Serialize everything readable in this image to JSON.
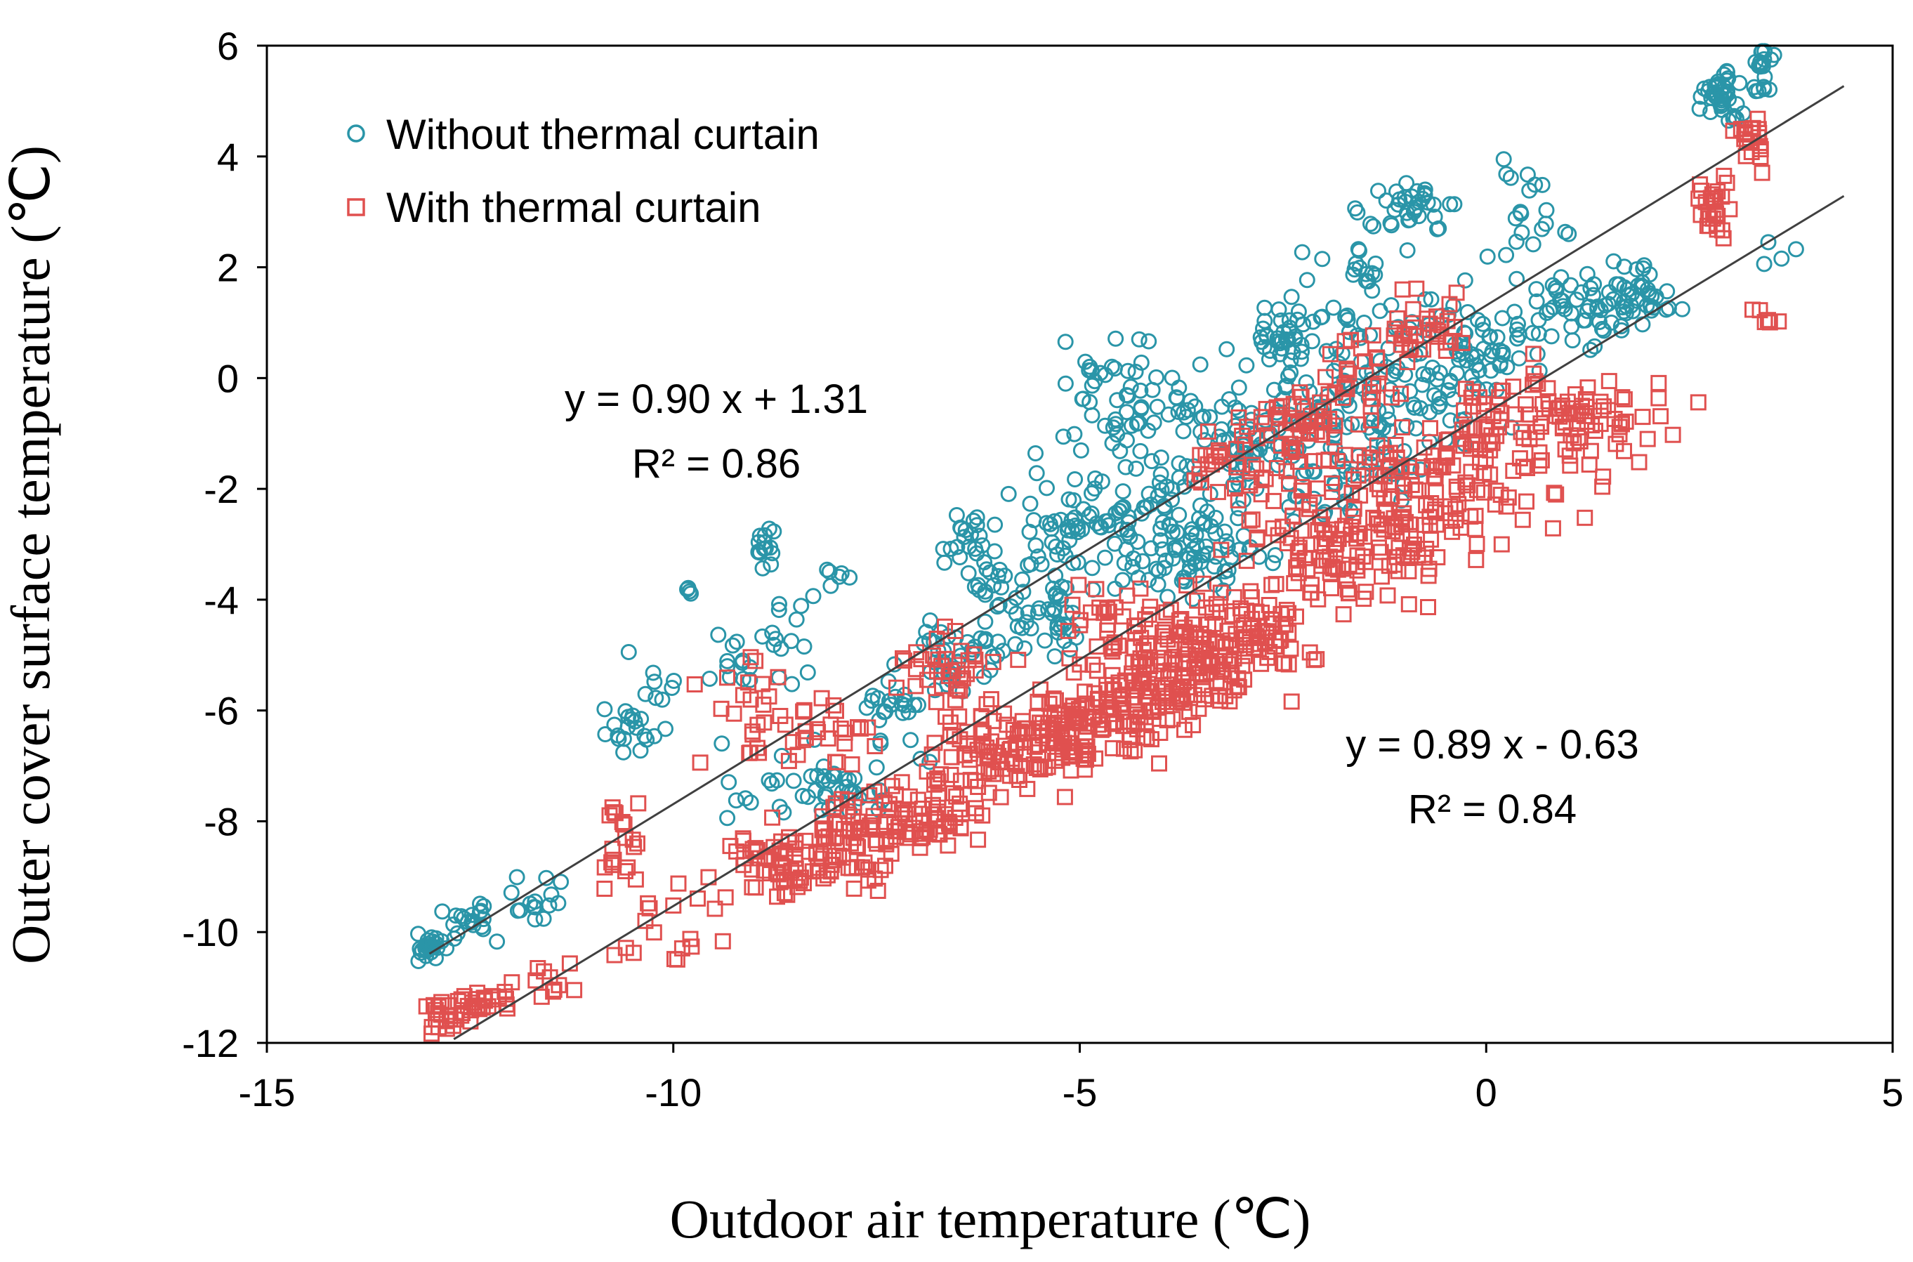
{
  "chart_data": {
    "type": "scatter",
    "xlabel": "Outdoor air temperature (℃)",
    "ylabel": "Outer cover surface temperature (℃)",
    "xlim": [
      -15,
      5
    ],
    "ylim": [
      -12,
      6
    ],
    "xticks": [
      "-15",
      "-10",
      "-5",
      "0",
      "5"
    ],
    "yticks": [
      "-12",
      "-10",
      "-8",
      "-6",
      "-4",
      "-2",
      "0",
      "2",
      "4",
      "6"
    ],
    "grid": false,
    "legend_position": "top-left",
    "colors": {
      "without": "#2a95a8",
      "with": "#e0504f",
      "line": "#404040"
    },
    "series": [
      {
        "name": "Without thermal curtain",
        "marker": "circle",
        "trend": {
          "slope": 0.9,
          "intercept": 1.31,
          "x_range": [
            -13,
            4.4
          ]
        },
        "equation": "y = 0.90 x + 1.31",
        "r2": "R² = 0.86",
        "clusters": [
          [
            -13.0,
            -10.3,
            0.25,
            0.2,
            25
          ],
          [
            -12.5,
            -9.8,
            0.3,
            0.3,
            20
          ],
          [
            -11.8,
            -9.4,
            0.4,
            0.3,
            15
          ],
          [
            -10.5,
            -6.3,
            0.25,
            0.4,
            20
          ],
          [
            -10.2,
            -5.4,
            0.3,
            0.4,
            8
          ],
          [
            -9.8,
            -3.9,
            0.1,
            0.1,
            4
          ],
          [
            -9.2,
            -5.5,
            0.3,
            0.6,
            12
          ],
          [
            -8.9,
            -3.0,
            0.1,
            0.3,
            15
          ],
          [
            -8.5,
            -4.5,
            0.4,
            0.6,
            15
          ],
          [
            -8.0,
            -3.5,
            0.2,
            0.3,
            6
          ],
          [
            -9.0,
            -7.2,
            0.6,
            0.6,
            15
          ],
          [
            -8.0,
            -7.4,
            0.6,
            0.4,
            30
          ],
          [
            -7.2,
            -6.0,
            0.4,
            0.6,
            25
          ],
          [
            -6.5,
            -5.0,
            0.5,
            0.6,
            40
          ],
          [
            -6.3,
            -3.0,
            0.3,
            0.6,
            25
          ],
          [
            -5.5,
            -4.0,
            0.6,
            0.8,
            60
          ],
          [
            -5.0,
            -2.6,
            0.6,
            0.8,
            50
          ],
          [
            -4.5,
            -0.5,
            0.8,
            0.9,
            60
          ],
          [
            -4.0,
            -2.5,
            0.8,
            1.0,
            50
          ],
          [
            -3.5,
            -3.2,
            0.8,
            0.7,
            60
          ],
          [
            -3.0,
            -1.0,
            0.7,
            1.0,
            60
          ],
          [
            -2.4,
            0.8,
            0.3,
            0.5,
            40
          ],
          [
            -2.0,
            -1.3,
            0.8,
            1.0,
            70
          ],
          [
            -1.5,
            -0.2,
            0.8,
            1.2,
            50
          ],
          [
            -1.5,
            2.0,
            0.6,
            1.0,
            30
          ],
          [
            -0.9,
            3.1,
            0.4,
            0.4,
            30
          ],
          [
            -0.5,
            0.0,
            0.8,
            1.0,
            50
          ],
          [
            0.0,
            0.7,
            0.6,
            0.8,
            40
          ],
          [
            0.5,
            3.0,
            0.5,
            1.0,
            20
          ],
          [
            1.0,
            1.1,
            0.5,
            0.5,
            30
          ],
          [
            1.5,
            1.4,
            0.5,
            0.5,
            30
          ],
          [
            2.0,
            1.5,
            0.4,
            0.4,
            25
          ],
          [
            2.9,
            5.1,
            0.2,
            0.4,
            40
          ],
          [
            3.4,
            5.6,
            0.1,
            0.4,
            20
          ],
          [
            3.8,
            2.4,
            0.4,
            0.3,
            4
          ]
        ]
      },
      {
        "name": "With thermal curtain",
        "marker": "square",
        "trend": {
          "slope": 0.89,
          "intercept": -0.63,
          "x_range": [
            -12.7,
            4.4
          ]
        },
        "equation": "y = 0.89 x - 0.63",
        "r2": "R² = 0.84",
        "clusters": [
          [
            -12.8,
            -11.4,
            0.2,
            0.3,
            25
          ],
          [
            -12.3,
            -11.1,
            0.3,
            0.3,
            20
          ],
          [
            -11.5,
            -10.8,
            0.3,
            0.3,
            10
          ],
          [
            -10.3,
            -10.2,
            0.6,
            0.3,
            10
          ],
          [
            -10.6,
            -8.5,
            0.3,
            0.8,
            20
          ],
          [
            -9.8,
            -9.5,
            0.6,
            0.5,
            10
          ],
          [
            -9.0,
            -6.0,
            0.5,
            1.0,
            25
          ],
          [
            -8.8,
            -8.8,
            0.5,
            0.6,
            40
          ],
          [
            -8.2,
            -8.7,
            0.6,
            0.5,
            50
          ],
          [
            -8.0,
            -6.3,
            0.5,
            0.6,
            25
          ],
          [
            -7.5,
            -8.2,
            0.7,
            0.5,
            50
          ],
          [
            -6.7,
            -7.7,
            0.6,
            0.5,
            50
          ],
          [
            -6.5,
            -5.5,
            0.5,
            0.8,
            40
          ],
          [
            -5.8,
            -6.8,
            0.7,
            0.6,
            80
          ],
          [
            -5.0,
            -6.3,
            0.7,
            0.6,
            80
          ],
          [
            -4.5,
            -4.5,
            0.6,
            0.8,
            40
          ],
          [
            -4.3,
            -5.8,
            0.7,
            0.6,
            80
          ],
          [
            -3.5,
            -5.2,
            0.7,
            0.6,
            80
          ],
          [
            -3.0,
            -4.5,
            0.7,
            0.8,
            80
          ],
          [
            -3.0,
            -1.5,
            0.6,
            0.8,
            40
          ],
          [
            -2.3,
            -0.8,
            0.4,
            0.5,
            40
          ],
          [
            -2.0,
            -3.0,
            0.8,
            1.0,
            80
          ],
          [
            -1.5,
            0.0,
            0.5,
            0.7,
            30
          ],
          [
            -1.2,
            -2.6,
            0.8,
            1.0,
            80
          ],
          [
            -0.8,
            1.0,
            0.5,
            0.6,
            30
          ],
          [
            -0.5,
            -1.8,
            0.8,
            0.8,
            60
          ],
          [
            0.2,
            -0.5,
            0.6,
            0.8,
            40
          ],
          [
            0.5,
            -2.0,
            0.6,
            0.8,
            20
          ],
          [
            1.0,
            -0.8,
            0.5,
            0.5,
            25
          ],
          [
            1.5,
            -1.0,
            0.6,
            0.6,
            20
          ],
          [
            2.0,
            -0.5,
            0.5,
            0.5,
            15
          ],
          [
            2.8,
            3.0,
            0.2,
            0.5,
            25
          ],
          [
            3.3,
            4.3,
            0.2,
            0.4,
            20
          ],
          [
            3.4,
            1.0,
            0.3,
            0.5,
            6
          ]
        ]
      }
    ]
  }
}
